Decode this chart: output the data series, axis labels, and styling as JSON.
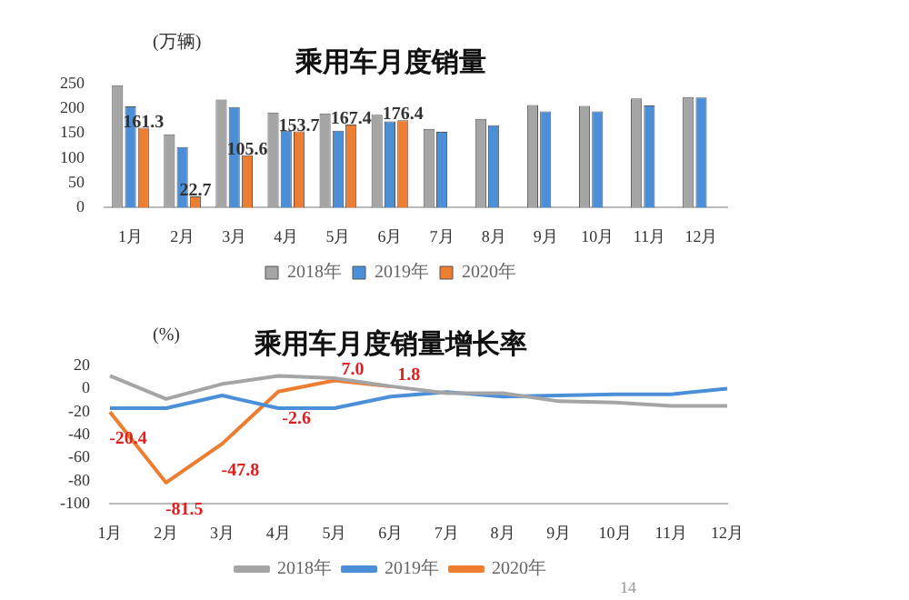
{
  "chart_data": [
    {
      "type": "bar",
      "title": "乘用车月度销量",
      "ylabel": "(万辆)",
      "categories": [
        "1月",
        "2月",
        "3月",
        "4月",
        "5月",
        "6月",
        "7月",
        "8月",
        "9月",
        "10月",
        "11月",
        "12月"
      ],
      "ylim": [
        0,
        250
      ],
      "yticks": [
        0,
        50,
        100,
        150,
        200,
        250
      ],
      "grid": false,
      "legend": "bottom",
      "series": [
        {
          "name": "2018年",
          "color": "#a5a5a5",
          "values": [
            247,
            148,
            218,
            192,
            190,
            187,
            159,
            179,
            207,
            205,
            220,
            223
          ]
        },
        {
          "name": "2019年",
          "color": "#4a8fd8",
          "values": [
            204,
            122,
            203,
            155,
            155,
            174,
            153,
            166,
            194,
            194,
            206,
            222
          ]
        },
        {
          "name": "2020年",
          "color": "#ed7d31",
          "values": [
            161.3,
            22.7,
            105.6,
            153.7,
            167.4,
            176.4,
            null,
            null,
            null,
            null,
            null,
            null
          ],
          "value_labels": [
            "161.3",
            "22.7",
            "105.6",
            "153.7",
            "167.4",
            "176.4",
            null,
            null,
            null,
            null,
            null,
            null
          ]
        }
      ]
    },
    {
      "type": "line",
      "title": "乘用车月度销量增长率",
      "ylabel": "(%)",
      "categories": [
        "1月",
        "2月",
        "3月",
        "4月",
        "5月",
        "6月",
        "7月",
        "8月",
        "9月",
        "10月",
        "11月",
        "12月"
      ],
      "ylim": [
        -100,
        20
      ],
      "yticks": [
        -100,
        -80,
        -60,
        -40,
        -20,
        0,
        20
      ],
      "grid": false,
      "legend": "bottom",
      "marker": "none",
      "annotations": [
        "14"
      ],
      "series": [
        {
          "name": "2018年",
          "color": "#a5a5a5",
          "values": [
            11,
            -9,
            4,
            11,
            9,
            2,
            -4,
            -4,
            -11,
            -12,
            -15,
            -15
          ]
        },
        {
          "name": "2019年",
          "color": "#4a8fd8",
          "values": [
            -17,
            -17,
            -6,
            -17,
            -17,
            -7,
            -3,
            -7,
            -6,
            -5,
            -5,
            0
          ]
        },
        {
          "name": "2020年",
          "color": "#ed7d31",
          "values": [
            -20.4,
            -81.5,
            -47.8,
            -2.6,
            7.0,
            1.8,
            null,
            null,
            null,
            null,
            null,
            null
          ],
          "value_labels": [
            "-20.4",
            "-81.5",
            "-47.8",
            "-2.6",
            "7.0",
            "1.8",
            null,
            null,
            null,
            null,
            null,
            null
          ]
        }
      ]
    }
  ]
}
